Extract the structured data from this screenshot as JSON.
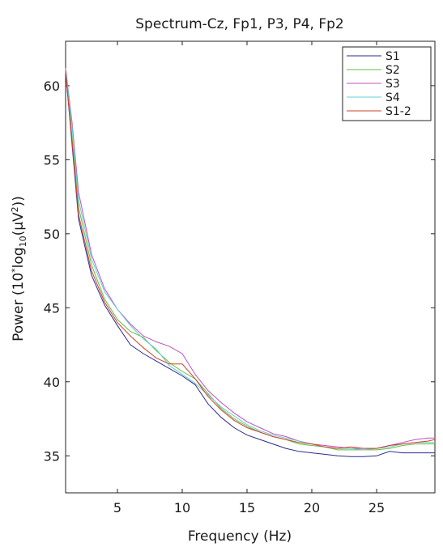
{
  "chart_data": {
    "type": "line",
    "title": "Spectrum-Cz, Fp1, P3, P4, Fp2",
    "xlabel": "Frequency (Hz)",
    "ylabel_parts": [
      "Power (10",
      "*",
      "log",
      "10",
      "(μV",
      "2",
      "))"
    ],
    "xlim": [
      1,
      29.5
    ],
    "ylim": [
      32.5,
      63
    ],
    "xticks": [
      5,
      10,
      15,
      20,
      25
    ],
    "yticks": [
      35,
      40,
      45,
      50,
      55,
      60
    ],
    "grid": false,
    "legend_position": "top-right",
    "series": [
      {
        "name": "S1",
        "color": "#2b2b8c",
        "x": [
          1,
          1.5,
          2,
          3,
          4,
          5,
          6,
          7,
          8,
          9,
          10,
          11,
          12,
          13,
          14,
          15,
          16,
          17,
          18,
          19,
          20,
          21,
          22,
          23,
          24,
          25,
          26,
          27,
          28,
          29,
          29.5
        ],
        "y": [
          61.0,
          56.0,
          51.0,
          47.2,
          45.2,
          43.8,
          42.5,
          41.9,
          41.4,
          40.9,
          40.4,
          39.8,
          38.5,
          37.6,
          36.9,
          36.4,
          36.1,
          35.8,
          35.5,
          35.3,
          35.2,
          35.1,
          35.0,
          34.95,
          34.95,
          35.0,
          35.3,
          35.2,
          35.2,
          35.2,
          35.2
        ]
      },
      {
        "name": "S2",
        "color": "#5fbf3f",
        "x": [
          1,
          1.5,
          2,
          3,
          4,
          5,
          6,
          7,
          8,
          9,
          10,
          11,
          12,
          13,
          14,
          15,
          16,
          17,
          18,
          19,
          20,
          21,
          22,
          23,
          24,
          25,
          26,
          27,
          28,
          29,
          29.5
        ],
        "y": [
          61.0,
          56.5,
          51.8,
          47.9,
          45.6,
          44.2,
          43.4,
          43.0,
          42.1,
          41.3,
          40.7,
          40.2,
          39.2,
          38.2,
          37.5,
          37.0,
          36.6,
          36.3,
          36.1,
          35.8,
          35.7,
          35.6,
          35.4,
          35.4,
          35.4,
          35.4,
          35.5,
          35.7,
          35.8,
          35.8,
          35.8
        ]
      },
      {
        "name": "S3",
        "color": "#c050c0",
        "x": [
          1,
          1.5,
          2,
          3,
          4,
          5,
          6,
          7,
          8,
          9,
          10,
          11,
          12,
          13,
          14,
          15,
          16,
          17,
          18,
          19,
          20,
          21,
          22,
          23,
          24,
          25,
          26,
          27,
          28,
          29,
          29.5
        ],
        "y": [
          61.2,
          57.5,
          52.8,
          48.6,
          46.3,
          44.9,
          43.9,
          43.1,
          42.7,
          42.4,
          41.9,
          40.5,
          39.4,
          38.6,
          37.9,
          37.3,
          36.9,
          36.5,
          36.3,
          36.0,
          35.8,
          35.7,
          35.6,
          35.5,
          35.5,
          35.5,
          35.7,
          35.9,
          36.1,
          36.2,
          36.2
        ]
      },
      {
        "name": "S4",
        "color": "#66cccc",
        "x": [
          1,
          1.5,
          2,
          3,
          4,
          5,
          6,
          7,
          8,
          9,
          10,
          11,
          12,
          13,
          14,
          15,
          16,
          17,
          18,
          19,
          20,
          21,
          22,
          23,
          24,
          25,
          26,
          27,
          28,
          29,
          29.5
        ],
        "y": [
          61.1,
          57.2,
          52.3,
          48.3,
          46.1,
          44.9,
          43.8,
          42.9,
          42.2,
          41.1,
          40.5,
          39.9,
          39.1,
          38.3,
          37.7,
          37.1,
          36.7,
          36.4,
          36.2,
          36.0,
          35.8,
          35.6,
          35.5,
          35.5,
          35.4,
          35.5,
          35.6,
          35.8,
          35.9,
          35.9,
          35.9
        ]
      },
      {
        "name": "S1-2",
        "color": "#d0402a",
        "x": [
          1,
          1.5,
          2,
          3,
          4,
          5,
          6,
          7,
          8,
          9,
          10,
          11,
          12,
          13,
          14,
          15,
          16,
          17,
          18,
          19,
          20,
          21,
          22,
          23,
          24,
          25,
          26,
          27,
          28,
          29,
          29.5
        ],
        "y": [
          61.0,
          56.2,
          51.3,
          47.5,
          45.4,
          44.0,
          43.1,
          42.3,
          41.6,
          41.2,
          41.2,
          40.2,
          39.0,
          38.1,
          37.4,
          36.9,
          36.6,
          36.3,
          36.1,
          35.9,
          35.8,
          35.6,
          35.5,
          35.6,
          35.5,
          35.5,
          35.7,
          35.8,
          35.9,
          36.0,
          36.1
        ]
      }
    ]
  }
}
